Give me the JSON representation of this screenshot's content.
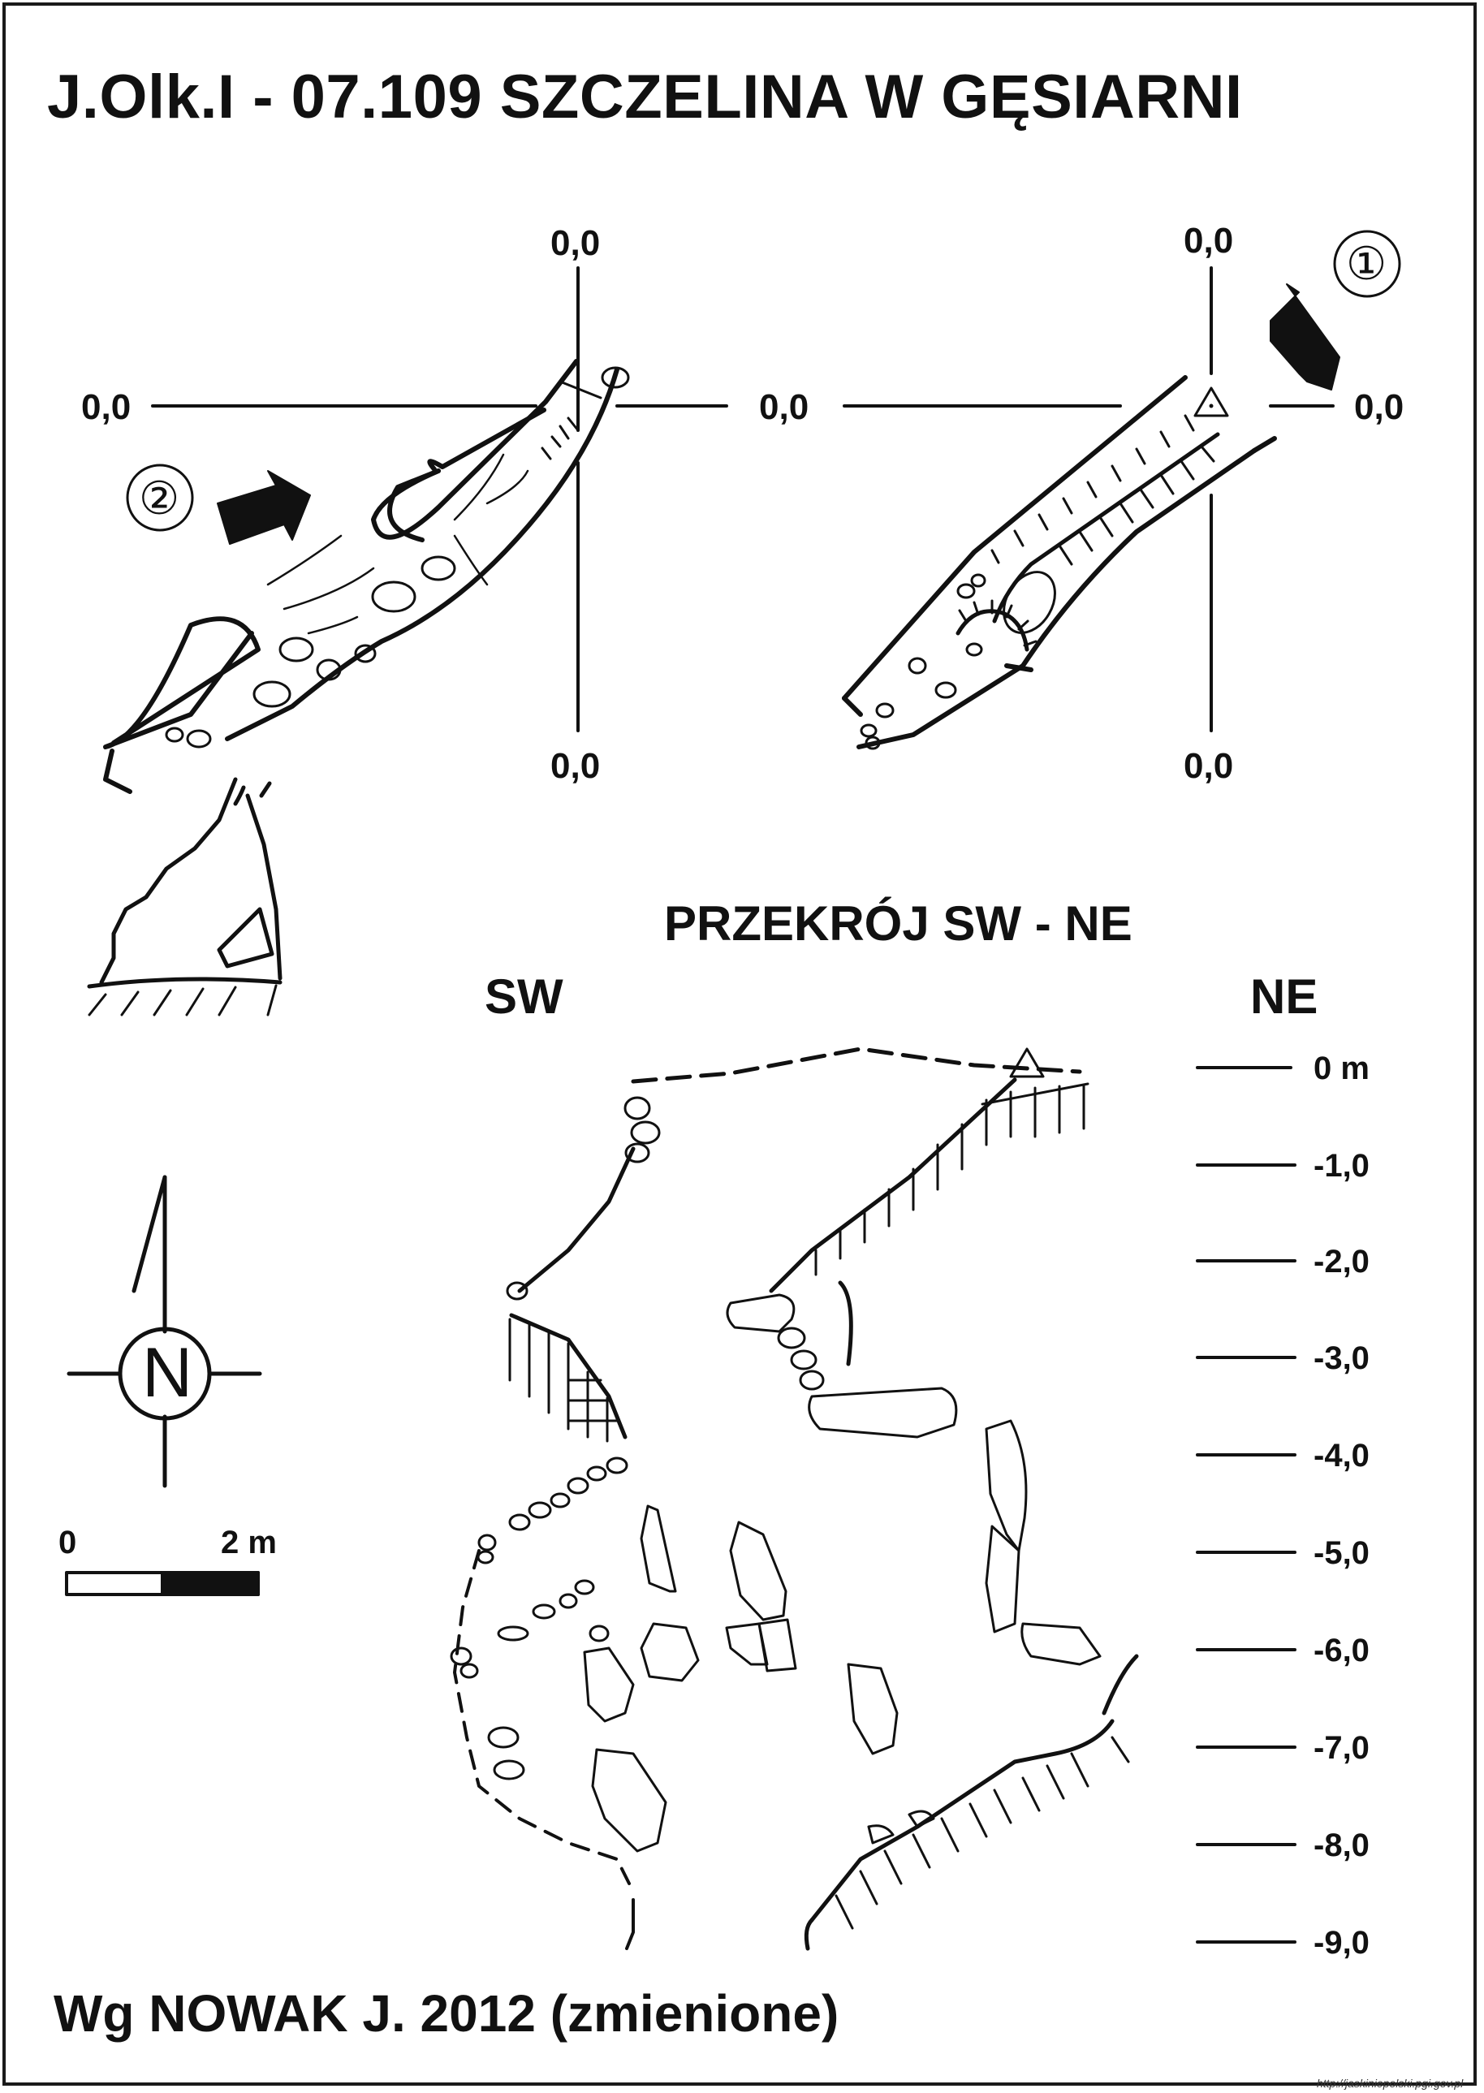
{
  "title": "J.Olk.I - 07.109  SZCZELINA W GĘSIARNI",
  "plan_left": {
    "entrance_marker": "②",
    "coord_top": "0,0",
    "coord_left": "0,0",
    "coord_bottom": "0,0"
  },
  "plan_right": {
    "entrance_marker": "①",
    "coord_top": "0,0",
    "coord_left": "0,0",
    "coord_right": "0,0",
    "coord_bottom": "0,0"
  },
  "section": {
    "heading": "PRZEKRÓJ SW - NE",
    "left_label": "SW",
    "right_label": "NE",
    "depth_labels": [
      "0 m",
      "-1,0",
      "-2,0",
      "-3,0",
      "-4,0",
      "-5,0",
      "-6,0",
      "-7,0",
      "-8,0",
      "-9,0"
    ]
  },
  "north_arrow": {
    "letter": "N"
  },
  "scale_bar": {
    "start": "0",
    "end": "2 m"
  },
  "credit": "Wg NOWAK J. 2012 (zmienione)",
  "source": "http://jaskiniepolski.pgi.gov.pl",
  "colors": {
    "ink": "#111111",
    "paper": "#ffffff"
  }
}
